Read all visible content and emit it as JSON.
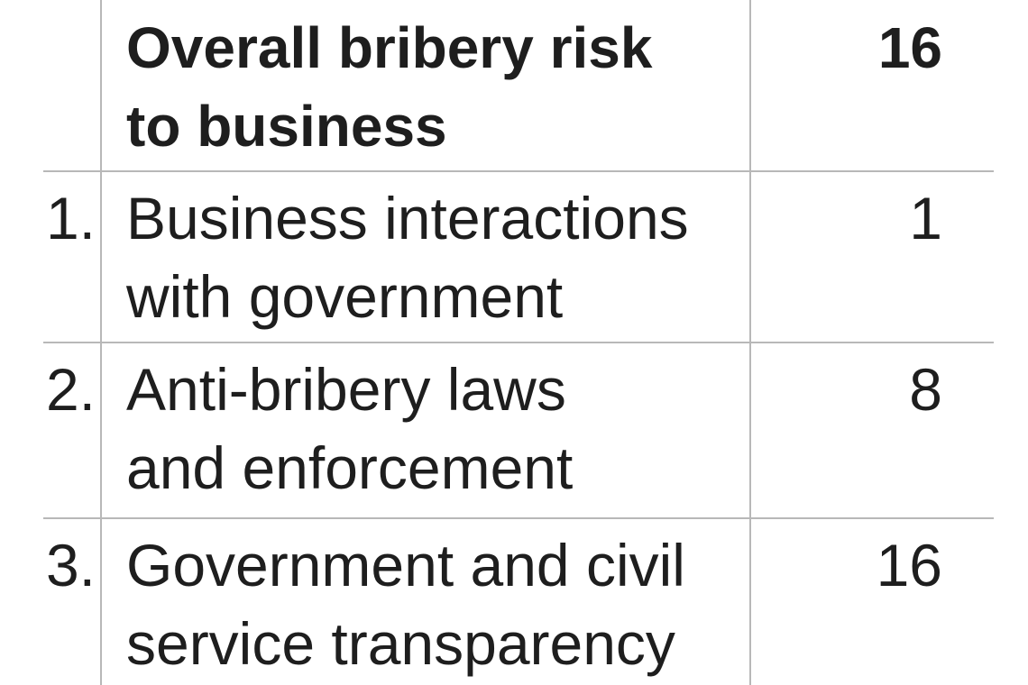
{
  "table": {
    "header": {
      "label": [
        "Overall bribery risk",
        "to business"
      ],
      "score": 16
    },
    "rows": [
      {
        "number": "1.",
        "label": [
          "Business interactions",
          "with government"
        ],
        "score": 1
      },
      {
        "number": "2.",
        "label": [
          "Anti-bribery laws",
          "and enforcement"
        ],
        "score": 8
      },
      {
        "number": "3.",
        "label": [
          "Government and civil",
          "service transparency"
        ],
        "score": 16
      }
    ]
  }
}
